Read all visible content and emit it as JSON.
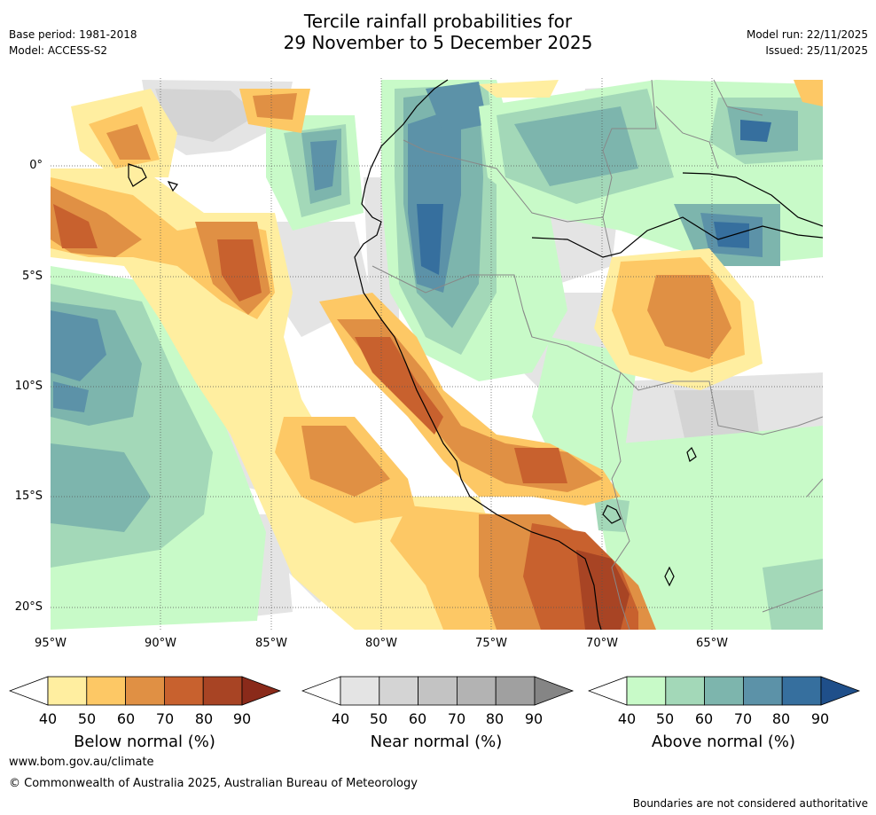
{
  "header": {
    "base_period": "Base period: 1981-2018",
    "model": "Model: ACCESS-S2",
    "title_line1": "Tercile rainfall probabilities for",
    "title_line2": "29 November to 5 December 2025",
    "model_run": "Model run: 22/11/2025",
    "issued": "Issued: 25/11/2025"
  },
  "map": {
    "lat_labels": [
      "0°",
      "5°S",
      "10°S",
      "15°S",
      "20°S"
    ],
    "lon_labels": [
      "95°W",
      "90°W",
      "85°W",
      "80°W",
      "75°W",
      "70°W",
      "65°W"
    ]
  },
  "legend": {
    "ticks": [
      "40",
      "50",
      "60",
      "70",
      "80",
      "90"
    ],
    "below": {
      "title": "Below normal (%)",
      "colors": [
        "#ffeea0",
        "#fdc865",
        "#e09044",
        "#c8612e",
        "#a84424",
        "#8a2a1a"
      ]
    },
    "near": {
      "title": "Near normal (%)",
      "colors": [
        "#e4e4e4",
        "#d4d4d4",
        "#c3c3c3",
        "#b3b3b3",
        "#a0a0a0",
        "#858585"
      ]
    },
    "above": {
      "title": "Above normal (%)",
      "colors": [
        "#c8fac8",
        "#a3d8b8",
        "#7db5ad",
        "#5c92a8",
        "#366f9e",
        "#1f4f8a"
      ]
    }
  },
  "footer": {
    "website": "www.bom.gov.au/climate",
    "copyright": "© Commonwealth of Australia 2025, Australian Bureau of Meteorology",
    "disclaimer": "Boundaries are not considered authoritative"
  }
}
